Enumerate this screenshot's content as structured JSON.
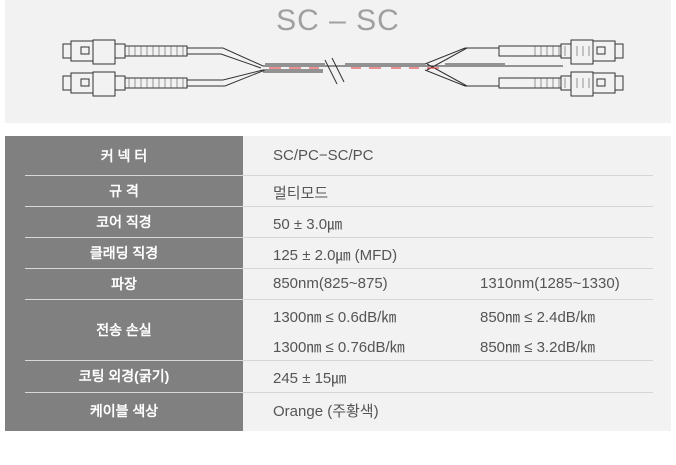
{
  "header": {
    "title": "SC – SC"
  },
  "diagram": {
    "fiber_color": "#e03030",
    "line_color": "#333333"
  },
  "specs": [
    {
      "label": "커 넥 터",
      "values": [
        "SC/PC−SC/PC"
      ]
    },
    {
      "label": "규 격",
      "values": [
        "멀티모드"
      ]
    },
    {
      "label": "코어 직경",
      "values": [
        "50 ± 3.0㎛"
      ]
    },
    {
      "label": "클래딩 직경",
      "values": [
        "125 ± 2.0㎛ (MFD)"
      ]
    },
    {
      "label": "파장",
      "values": [
        "850nm(825~875)",
        "1310nm(1285~1330)"
      ]
    },
    {
      "label": "전송 손실",
      "values": [
        "1300㎚ ≤ 0.6dB/㎞",
        "850㎚ ≤ 2.4dB/㎞",
        "1300㎚ ≤ 0.76dB/㎞",
        "850㎚ ≤ 3.2dB/㎞"
      ]
    },
    {
      "label": "코팅 외경(굵기)",
      "values": [
        "245 ± 15㎛"
      ]
    },
    {
      "label": "케이블 색상",
      "values": [
        "Orange (주황색)"
      ]
    }
  ],
  "colors": {
    "label_bg": "#808080",
    "value_bg": "#f2f2f2",
    "value_text": "#555555"
  }
}
